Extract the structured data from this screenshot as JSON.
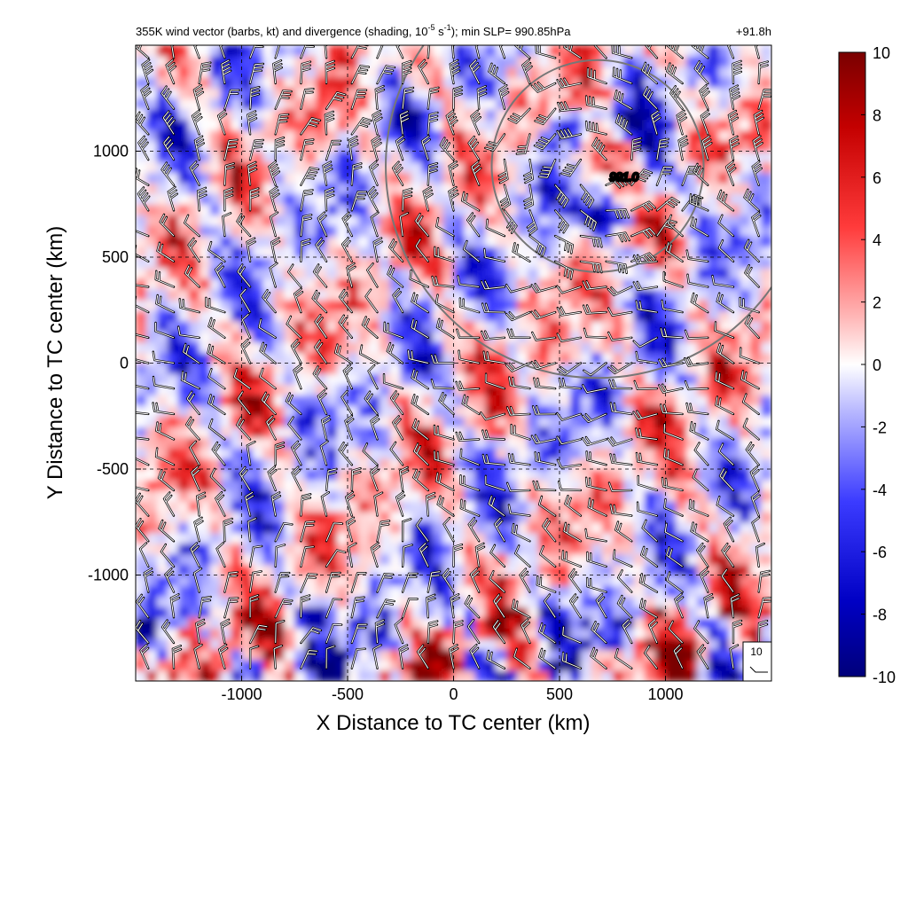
{
  "chart_data": {
    "type": "heatmap",
    "title": {
      "prefix": "355K wind vector (barbs, kt) and divergence (shading, 10",
      "exp1": "-5",
      "mid": " s",
      "exp2": "-1",
      "suffix": "); min SLP= 990.85hPa"
    },
    "time_label": "+91.8h",
    "xlabel": "X Distance to TC center (km)",
    "ylabel": "Y Distance to TC center (km)",
    "xlim": [
      -1500,
      1500
    ],
    "ylim": [
      -1500,
      1500
    ],
    "xticks": [
      -1000,
      -500,
      0,
      500,
      1000
    ],
    "yticks": [
      -1000,
      -500,
      0,
      500,
      1000
    ],
    "grid": "dashed",
    "colorbar": {
      "range": [
        -10,
        10
      ],
      "ticks": [
        10,
        8,
        6,
        4,
        2,
        0,
        -2,
        -4,
        -6,
        -8,
        -10
      ],
      "colors": [
        "#7a0000",
        "#c40000",
        "#ff3b3b",
        "#ffb3b3",
        "#ffffff",
        "#b3b3ff",
        "#3b3bff",
        "#0000c4",
        "#00007a"
      ]
    },
    "circles": [
      {
        "center": [
          680,
          930
        ],
        "radius": 500
      },
      {
        "center": [
          680,
          930
        ],
        "radius": 1000
      }
    ],
    "pressure_contour_label": {
      "text": "991.0",
      "position": [
        820,
        880
      ]
    },
    "barb_reference": {
      "label": "10",
      "speed_kt": 10
    },
    "barb_grid_spacing_km": 120,
    "barb_samples": [
      {
        "x": -1000,
        "y": 1000,
        "dir_deg": 270,
        "speed_kt": 25
      },
      {
        "x": 0,
        "y": 0,
        "dir_deg": 225,
        "speed_kt": 15
      },
      {
        "x": 500,
        "y": -500,
        "dir_deg": 200,
        "speed_kt": 15
      },
      {
        "x": -500,
        "y": -1000,
        "dir_deg": 300,
        "speed_kt": 10
      },
      {
        "x": 700,
        "y": 1000,
        "dir_deg": 180,
        "speed_kt": 40
      }
    ]
  }
}
